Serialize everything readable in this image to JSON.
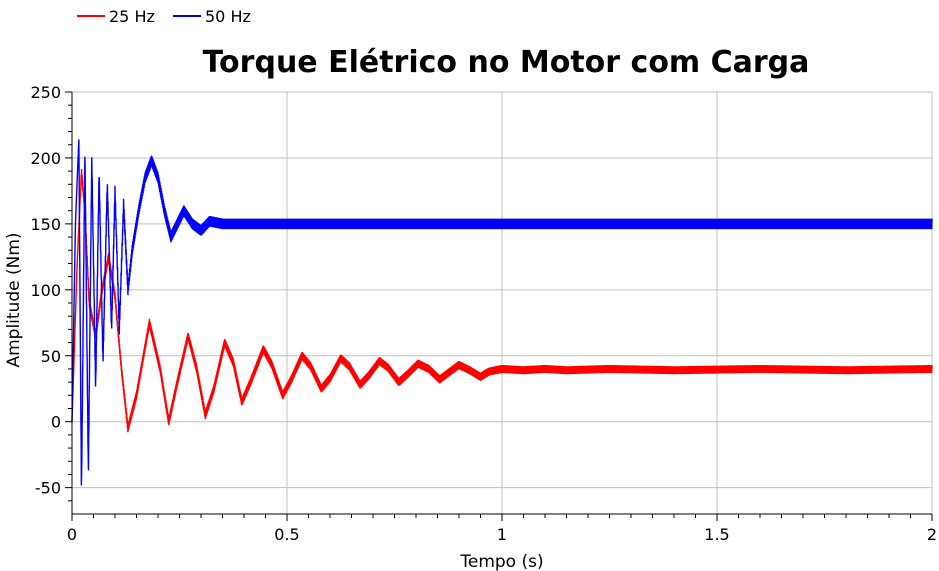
{
  "chart_data": {
    "type": "line",
    "title": "Torque Elétrico no Motor com Carga",
    "xlabel": "Tempo (s)",
    "ylabel": "Amplitude (Nm)",
    "xlim": [
      0,
      2
    ],
    "ylim": [
      -70,
      250
    ],
    "x_ticks": [
      0,
      0.5,
      1,
      1.5,
      2
    ],
    "x_tick_labels": [
      "0",
      "0.5",
      "1",
      "1.5",
      "2"
    ],
    "y_ticks": [
      -50,
      0,
      50,
      100,
      150,
      200,
      250
    ],
    "y_tick_labels": [
      "-50",
      "0",
      "50",
      "100",
      "150",
      "200",
      "250"
    ],
    "grid": true,
    "legend_position": "top-left",
    "series": [
      {
        "name": "25 Hz",
        "color": "#ff0000",
        "x": [
          0,
          0.012,
          0.022,
          0.03,
          0.04,
          0.055,
          0.07,
          0.085,
          0.1,
          0.115,
          0.13,
          0.15,
          0.18,
          0.205,
          0.225,
          0.245,
          0.27,
          0.29,
          0.31,
          0.33,
          0.355,
          0.375,
          0.395,
          0.415,
          0.445,
          0.465,
          0.49,
          0.51,
          0.535,
          0.555,
          0.58,
          0.6,
          0.625,
          0.645,
          0.67,
          0.69,
          0.715,
          0.735,
          0.76,
          0.78,
          0.805,
          0.83,
          0.855,
          0.875,
          0.9,
          0.925,
          0.95,
          0.97,
          1.0,
          1.05,
          1.1,
          1.15,
          1.25,
          1.4,
          1.6,
          1.8,
          2.0
        ],
        "y": [
          0,
          120,
          190,
          160,
          90,
          65,
          100,
          125,
          95,
          40,
          -5,
          20,
          75,
          40,
          0,
          30,
          65,
          40,
          5,
          25,
          60,
          45,
          15,
          30,
          55,
          43,
          20,
          32,
          50,
          42,
          25,
          33,
          48,
          42,
          28,
          35,
          46,
          41,
          30,
          36,
          44,
          40,
          32,
          37,
          43,
          39,
          34,
          38,
          40,
          39,
          40,
          39,
          40,
          39,
          40,
          39,
          40
        ],
        "noise": 3
      },
      {
        "name": "50 Hz",
        "color": "#0000ff",
        "x": [
          0,
          0.008,
          0.016,
          0.022,
          0.03,
          0.038,
          0.046,
          0.055,
          0.063,
          0.072,
          0.082,
          0.092,
          0.1,
          0.11,
          0.12,
          0.13,
          0.14,
          0.155,
          0.17,
          0.185,
          0.2,
          0.215,
          0.23,
          0.245,
          0.26,
          0.28,
          0.3,
          0.32,
          0.35,
          0.38,
          0.5,
          1.0,
          1.5,
          2.0
        ],
        "y": [
          0,
          150,
          215,
          -55,
          205,
          -40,
          200,
          25,
          190,
          45,
          180,
          70,
          175,
          70,
          165,
          100,
          130,
          160,
          185,
          198,
          185,
          160,
          140,
          150,
          160,
          150,
          145,
          152,
          150,
          150,
          150,
          150,
          150,
          150
        ],
        "noise": 4
      }
    ]
  }
}
